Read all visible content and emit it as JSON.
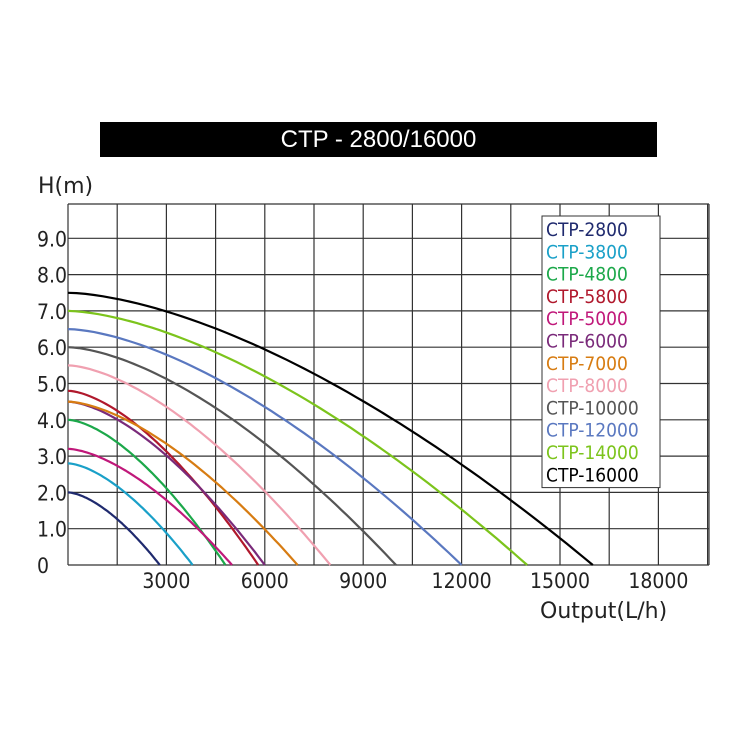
{
  "chart_data": {
    "type": "line",
    "title": "CTP - 2800/16000",
    "xlabel": "Output(L/h)",
    "ylabel": "H(m)",
    "xlim": [
      0,
      20000
    ],
    "ylim": [
      0,
      10
    ],
    "x_ticks": [
      3000,
      6000,
      9000,
      12000,
      15000,
      18000
    ],
    "x_tick_labels": [
      "3000",
      "6000",
      "9000",
      "12000",
      "15000",
      "18000"
    ],
    "y_ticks": [
      0,
      1,
      2,
      3,
      4,
      5,
      6,
      7,
      8,
      9
    ],
    "y_tick_labels": [
      "0",
      "1.0",
      "2.0",
      "3.0",
      "4.0",
      "5.0",
      "6.0",
      "7.0",
      "8.0",
      "9.0"
    ],
    "grid": true,
    "legend_position": "top-right",
    "series": [
      {
        "name": "CTP-2800",
        "color": "#1f2a6e",
        "max_head": 2.0,
        "max_flow": 2800
      },
      {
        "name": "CTP-3800",
        "color": "#1aa0c8",
        "max_head": 2.8,
        "max_flow": 3800
      },
      {
        "name": "CTP-4800",
        "color": "#1ca84a",
        "max_head": 4.0,
        "max_flow": 4800
      },
      {
        "name": "CTP-5800",
        "color": "#b0182c",
        "max_head": 4.8,
        "max_flow": 5800
      },
      {
        "name": "CTP-5000",
        "color": "#c0187a",
        "max_head": 3.2,
        "max_flow": 5000
      },
      {
        "name": "CTP-6000",
        "color": "#7a2a7a",
        "max_head": 4.5,
        "max_flow": 6000
      },
      {
        "name": "CTP-7000",
        "color": "#d77c12",
        "max_head": 4.5,
        "max_flow": 7000
      },
      {
        "name": "CTP-8000",
        "color": "#f0a0b0",
        "max_head": 5.5,
        "max_flow": 8000
      },
      {
        "name": "CTP-10000",
        "color": "#555555",
        "max_head": 6.0,
        "max_flow": 10000
      },
      {
        "name": "CTP-12000",
        "color": "#5a78c0",
        "max_head": 6.5,
        "max_flow": 12000
      },
      {
        "name": "CTP-14000",
        "color": "#7cc41c",
        "max_head": 7.0,
        "max_flow": 14000
      },
      {
        "name": "CTP-16000",
        "color": "#000000",
        "max_head": 7.5,
        "max_flow": 16000
      }
    ]
  }
}
